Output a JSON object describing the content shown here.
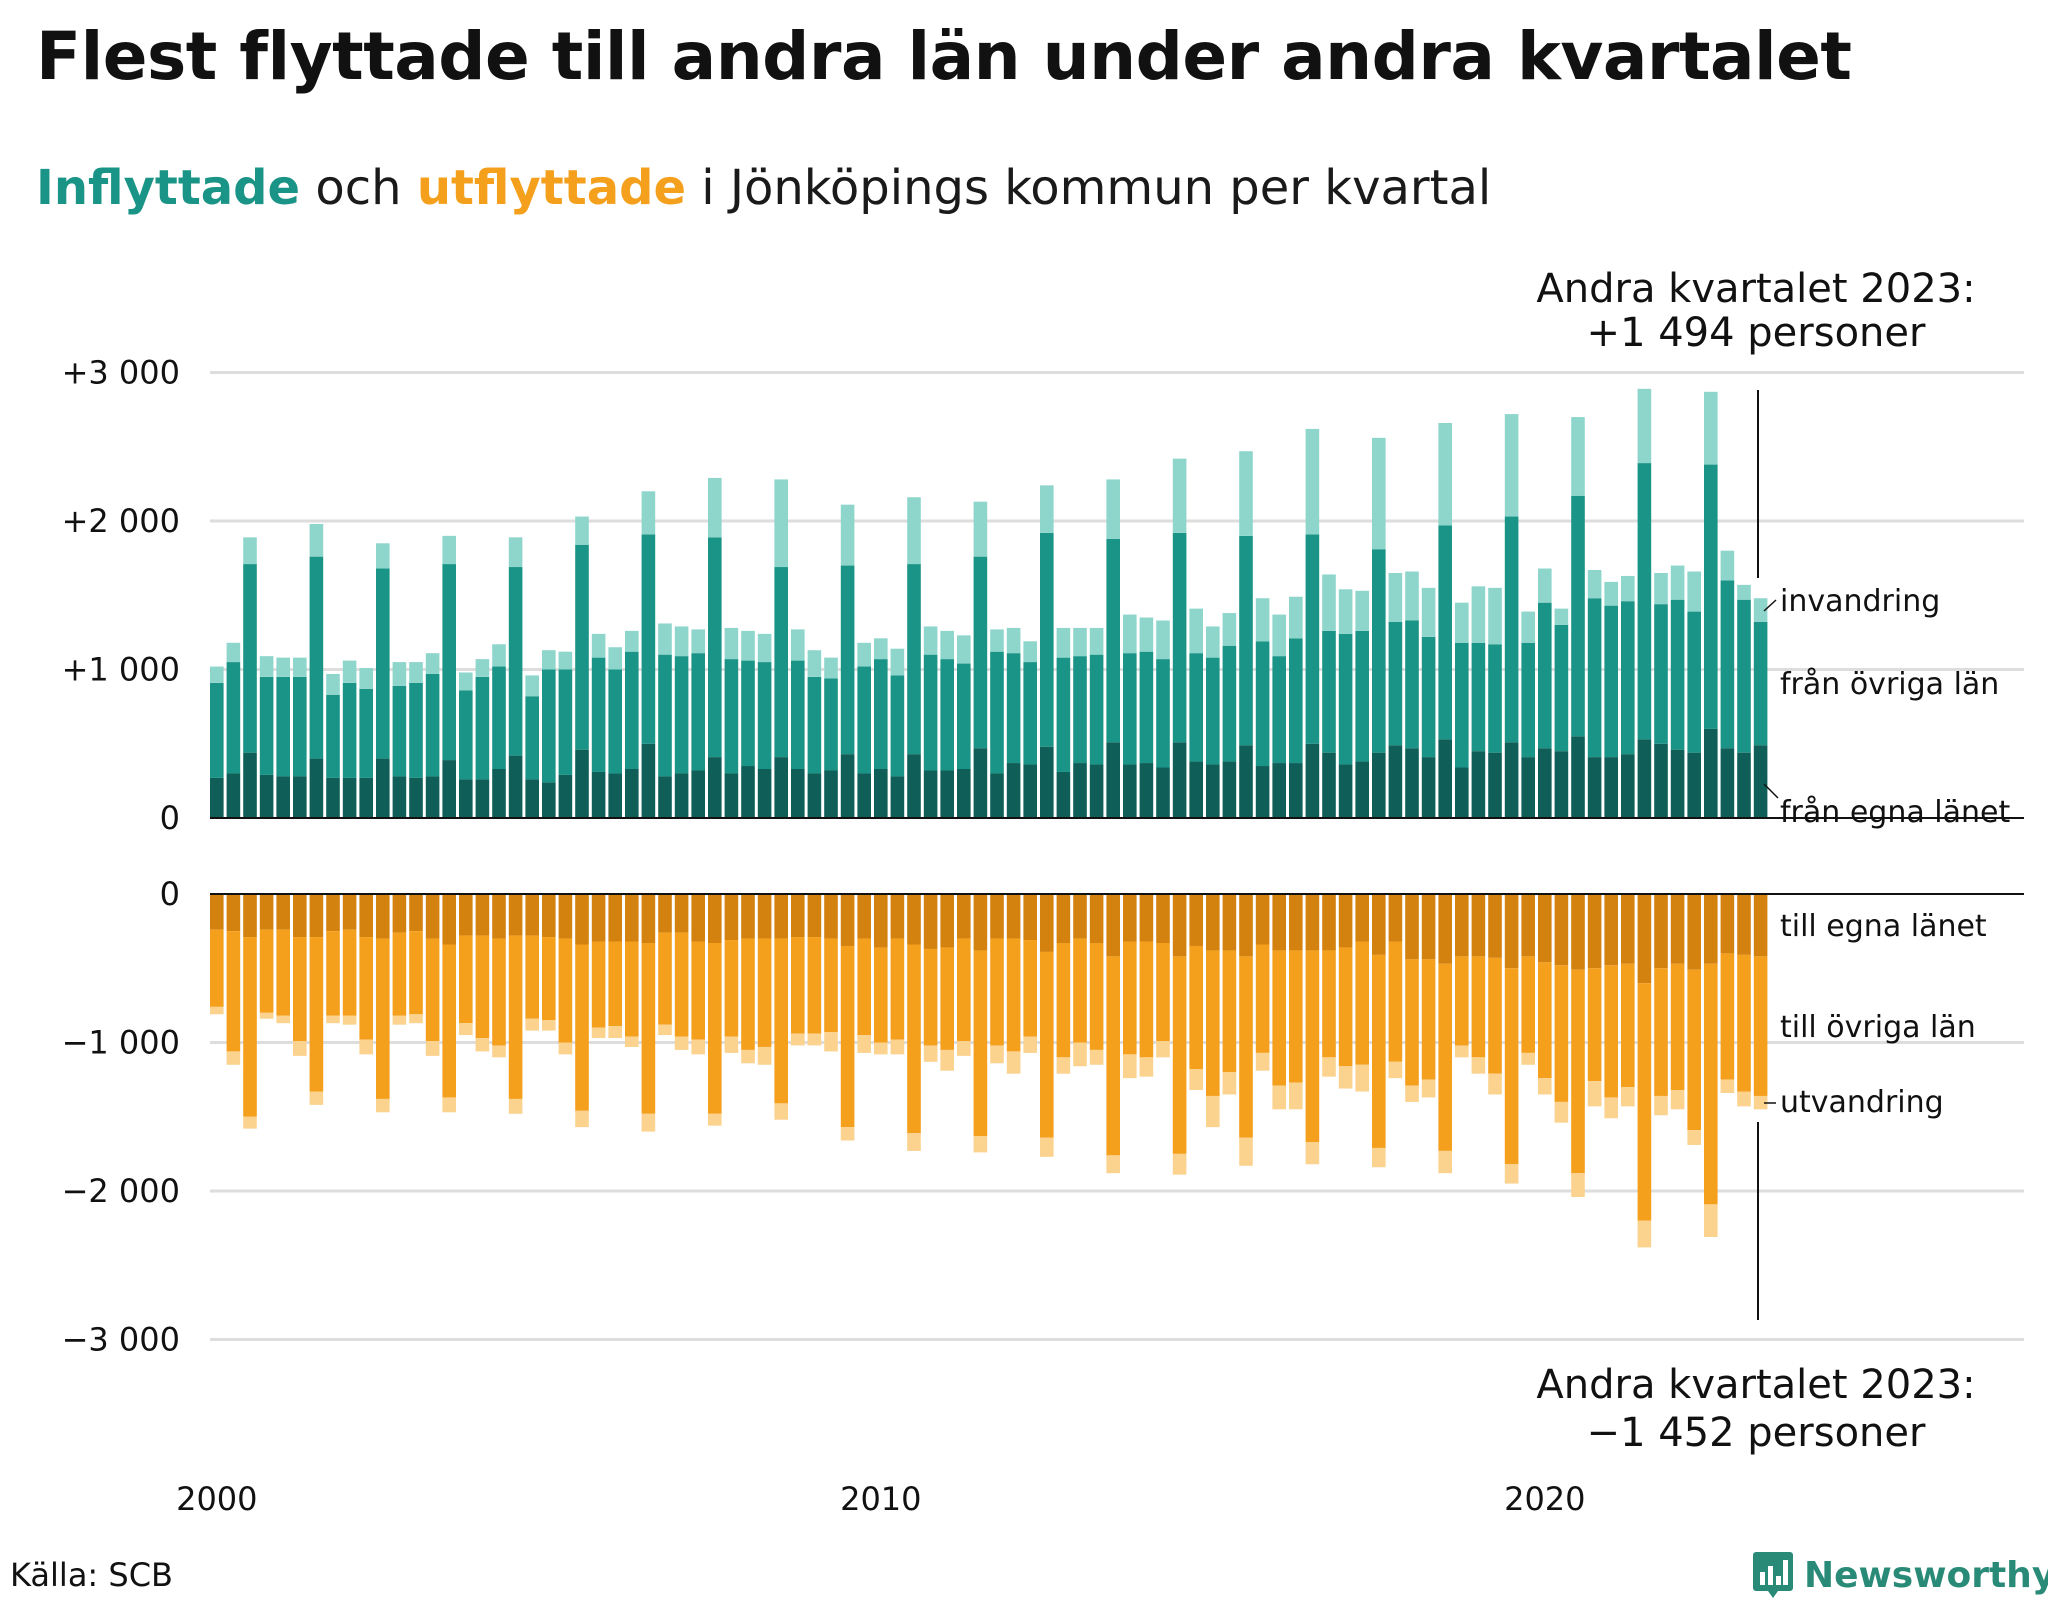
{
  "title": "Flest flyttade till andra län under andra kvartalet",
  "subtitle": {
    "inflow_word": "Inflyttade",
    "and": "och",
    "outflow_word": "utflyttade",
    "rest": "i Jönköpings kommun per kvartal"
  },
  "source": "Källa: SCB",
  "brand": "Newsworthy",
  "colors": {
    "in_own_county": "#0f5e57",
    "in_other_counties": "#1a9486",
    "in_immigration": "#8ed6cc",
    "out_own_county": "#d4820f",
    "out_other_counties": "#f4a01c",
    "out_emigration": "#fbd28e",
    "grid": "#dddddd",
    "inflow_text": "#1a9486",
    "outflow_text": "#f4a01c",
    "brand": "#2a8a78"
  },
  "chart_data": {
    "type": "bar",
    "stacked": true,
    "x_labels": [
      "2000",
      "2010",
      "2020"
    ],
    "x_start": "2000 Q1",
    "x_end": "2023 Q2",
    "inflow": {
      "ylim": [
        0,
        3000
      ],
      "yticks": [
        0,
        1000,
        2000,
        3000
      ],
      "ytick_labels": [
        "0",
        "+1 000",
        "+2 000",
        "+3 000"
      ],
      "series": [
        {
          "name": "från egna länet",
          "values": [
            270,
            300,
            440,
            290,
            280,
            280,
            400,
            270,
            270,
            270,
            400,
            280,
            270,
            280,
            390,
            260,
            260,
            330,
            420,
            260,
            240,
            290,
            460,
            310,
            300,
            330,
            500,
            280,
            300,
            320,
            410,
            300,
            350,
            330,
            410,
            330,
            300,
            320,
            430,
            300,
            330,
            280,
            430,
            320,
            320,
            330,
            470,
            300,
            370,
            360,
            480,
            310,
            370,
            360,
            510,
            360,
            370,
            340,
            510,
            380,
            360,
            380,
            490,
            350,
            370,
            370,
            500,
            440,
            360,
            380,
            440,
            490,
            470,
            410,
            530,
            340,
            450,
            440,
            510,
            410,
            470,
            450,
            550,
            410,
            410,
            430,
            530,
            500,
            460,
            440,
            600,
            470,
            440,
            490
          ]
        },
        {
          "name": "från övriga län",
          "values": [
            640,
            750,
            1270,
            660,
            670,
            670,
            1360,
            560,
            640,
            600,
            1280,
            610,
            640,
            690,
            1320,
            600,
            690,
            690,
            1270,
            560,
            760,
            710,
            1380,
            770,
            700,
            790,
            1410,
            820,
            790,
            790,
            1480,
            770,
            710,
            720,
            1280,
            730,
            650,
            620,
            1270,
            720,
            740,
            680,
            1280,
            780,
            750,
            710,
            1290,
            820,
            740,
            690,
            1440,
            770,
            720,
            740,
            1370,
            750,
            750,
            730,
            1410,
            730,
            720,
            780,
            1410,
            840,
            720,
            840,
            1410,
            820,
            880,
            880,
            1370,
            830,
            860,
            810,
            1440,
            840,
            730,
            730,
            1520,
            770,
            980,
            850,
            1620,
            1070,
            1020,
            1030,
            1860,
            940,
            1010,
            950,
            1780,
            1130,
            1030,
            830
          ]
        },
        {
          "name": "invandring",
          "values": [
            110,
            130,
            180,
            140,
            130,
            130,
            220,
            140,
            150,
            140,
            170,
            160,
            140,
            140,
            190,
            120,
            120,
            150,
            200,
            140,
            130,
            120,
            190,
            160,
            150,
            140,
            290,
            210,
            200,
            160,
            400,
            210,
            200,
            190,
            590,
            210,
            180,
            140,
            410,
            160,
            140,
            180,
            450,
            190,
            190,
            190,
            370,
            150,
            170,
            140,
            320,
            200,
            190,
            180,
            400,
            260,
            230,
            260,
            500,
            300,
            210,
            220,
            570,
            290,
            280,
            280,
            710,
            380,
            300,
            270,
            750,
            330,
            330,
            330,
            690,
            270,
            380,
            380,
            690,
            210,
            230,
            110,
            530,
            190,
            160,
            170,
            500,
            210,
            230,
            270,
            490,
            200,
            100,
            160
          ]
        }
      ],
      "annotation": {
        "line1": "Andra kvartalet 2023:",
        "line2": "+1 494 personer"
      }
    },
    "outflow": {
      "ylim": [
        -3000,
        0
      ],
      "yticks": [
        0,
        -1000,
        -2000,
        -3000
      ],
      "ytick_labels": [
        "0",
        "−1 000",
        "−2 000",
        "−3 000"
      ],
      "series": [
        {
          "name": "till egna länet",
          "values": [
            -240,
            -250,
            -290,
            -240,
            -240,
            -290,
            -290,
            -250,
            -240,
            -290,
            -300,
            -260,
            -250,
            -300,
            -340,
            -280,
            -280,
            -300,
            -280,
            -280,
            -290,
            -300,
            -340,
            -320,
            -320,
            -320,
            -330,
            -260,
            -260,
            -320,
            -330,
            -310,
            -300,
            -300,
            -300,
            -290,
            -290,
            -300,
            -350,
            -300,
            -360,
            -300,
            -340,
            -370,
            -360,
            -300,
            -380,
            -300,
            -300,
            -310,
            -390,
            -330,
            -300,
            -330,
            -420,
            -320,
            -320,
            -330,
            -420,
            -350,
            -380,
            -380,
            -420,
            -340,
            -380,
            -380,
            -380,
            -380,
            -360,
            -320,
            -410,
            -320,
            -440,
            -440,
            -470,
            -420,
            -420,
            -430,
            -500,
            -420,
            -460,
            -480,
            -510,
            -500,
            -480,
            -470,
            -600,
            -500,
            -470,
            -510,
            -470,
            -400,
            -410,
            -420
          ]
        },
        {
          "name": "till övriga län",
          "values": [
            -520,
            -810,
            -1210,
            -560,
            -580,
            -700,
            -1040,
            -570,
            -580,
            -690,
            -1080,
            -560,
            -560,
            -690,
            -1030,
            -590,
            -690,
            -720,
            -1100,
            -560,
            -560,
            -700,
            -1120,
            -580,
            -570,
            -640,
            -1150,
            -620,
            -700,
            -660,
            -1150,
            -650,
            -750,
            -730,
            -1110,
            -650,
            -650,
            -630,
            -1220,
            -650,
            -640,
            -680,
            -1270,
            -650,
            -690,
            -690,
            -1250,
            -720,
            -760,
            -650,
            -1250,
            -770,
            -700,
            -720,
            -1340,
            -760,
            -780,
            -660,
            -1330,
            -830,
            -980,
            -820,
            -1220,
            -730,
            -910,
            -890,
            -1290,
            -720,
            -800,
            -830,
            -1300,
            -810,
            -850,
            -810,
            -1260,
            -600,
            -680,
            -780,
            -1320,
            -650,
            -780,
            -920,
            -1370,
            -760,
            -890,
            -830,
            -1600,
            -860,
            -850,
            -1080,
            -1620,
            -850,
            -920,
            -940
          ]
        },
        {
          "name": "utvandring",
          "values": [
            -50,
            -90,
            -80,
            -40,
            -50,
            -100,
            -90,
            -50,
            -60,
            -100,
            -90,
            -60,
            -60,
            -100,
            -100,
            -80,
            -90,
            -80,
            -100,
            -80,
            -70,
            -80,
            -110,
            -70,
            -80,
            -70,
            -120,
            -70,
            -90,
            -100,
            -80,
            -110,
            -90,
            -120,
            -110,
            -80,
            -80,
            -130,
            -90,
            -120,
            -80,
            -100,
            -120,
            -110,
            -140,
            -100,
            -110,
            -120,
            -150,
            -110,
            -130,
            -110,
            -160,
            -100,
            -120,
            -160,
            -130,
            -110,
            -140,
            -140,
            -210,
            -150,
            -190,
            -120,
            -160,
            -180,
            -150,
            -130,
            -150,
            -180,
            -130,
            -110,
            -110,
            -120,
            -150,
            -80,
            -110,
            -140,
            -130,
            -80,
            -110,
            -140,
            -160,
            -170,
            -140,
            -130,
            -180,
            -130,
            -130,
            -100,
            -220,
            -90,
            -100,
            -90
          ]
        }
      ],
      "annotation": {
        "line1": "Andra kvartalet 2023:",
        "line2": "−1 452 personer"
      }
    },
    "end_labels": {
      "invandring": "invandring",
      "fran_ovriga": "från övriga län",
      "fran_egna": "från egna länet",
      "till_egna": "till egna länet",
      "till_ovriga": "till övriga län",
      "utvandring": "utvandring"
    },
    "grid": true
  }
}
